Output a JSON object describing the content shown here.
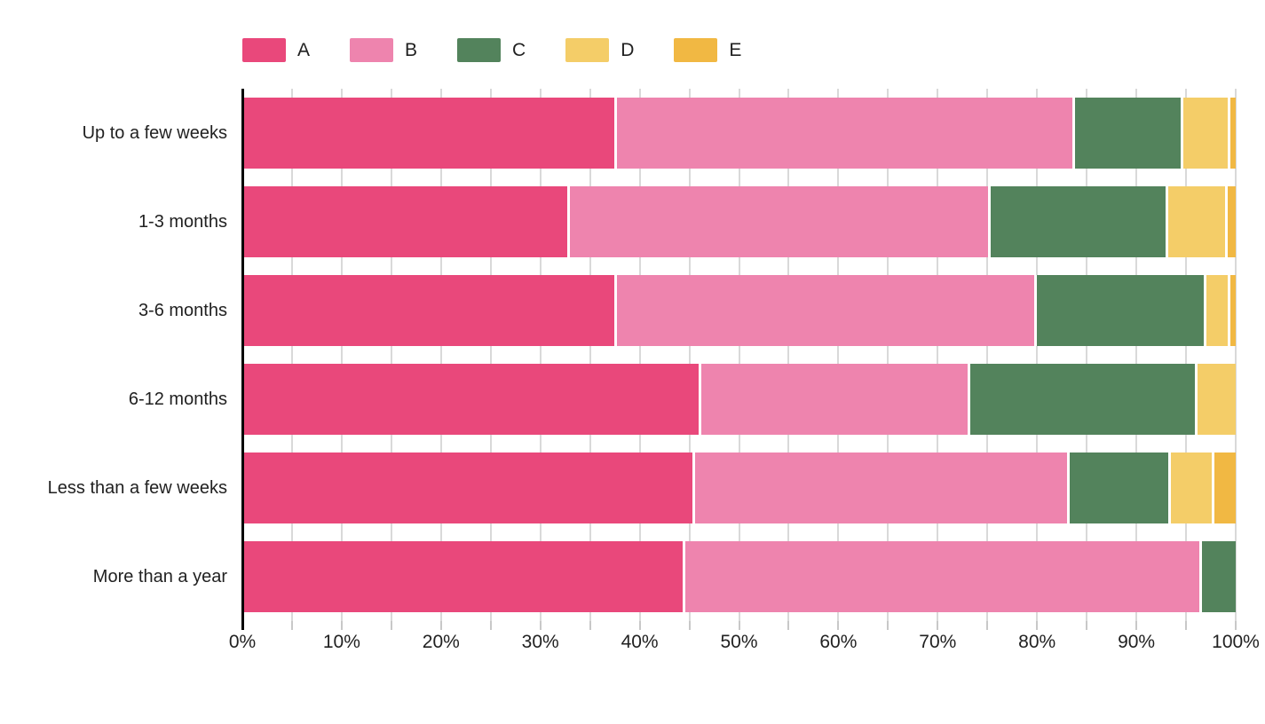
{
  "chart_data": {
    "type": "bar",
    "orientation": "horizontal",
    "stacked": true,
    "unit": "%",
    "title": "",
    "xlabel": "",
    "ylabel": "",
    "categories": [
      "Up to a few weeks",
      "1-3 months",
      "3-6 months",
      "6-12 months",
      "Less than a few weeks",
      "More than a year"
    ],
    "series": [
      {
        "name": "A",
        "color": "#e9487b",
        "values": [
          37.4,
          32.7,
          37.4,
          45.9,
          45.3,
          44.3
        ]
      },
      {
        "name": "B",
        "color": "#ee84ae",
        "values": [
          46.2,
          42.4,
          42.3,
          27.1,
          37.7,
          52.0
        ]
      },
      {
        "name": "C",
        "color": "#53835c",
        "values": [
          10.9,
          17.8,
          17.1,
          22.9,
          10.2,
          3.7
        ]
      },
      {
        "name": "D",
        "color": "#f4cd68",
        "values": [
          4.7,
          6.0,
          2.4,
          4.1,
          4.4,
          0.0
        ]
      },
      {
        "name": "E",
        "color": "#f1b843",
        "values": [
          0.8,
          1.1,
          0.8,
          0.0,
          2.4,
          0.0
        ]
      }
    ],
    "x_axis": {
      "min": 0,
      "max": 100,
      "tick_step": 10,
      "minor_tick_step": 5,
      "tick_labels": [
        "0%",
        "10%",
        "20%",
        "30%",
        "40%",
        "50%",
        "60%",
        "70%",
        "80%",
        "90%",
        "100%"
      ]
    },
    "legend": {
      "position": "top",
      "entries": [
        "A",
        "B",
        "C",
        "D",
        "E"
      ]
    },
    "grid": {
      "show": true,
      "color": "#d9d9d9"
    }
  },
  "colors": {
    "background": "#ffffff",
    "axis_line": "#000000",
    "tick": "#c8c8c8",
    "text": "#212121",
    "segment_separator": "#ffffff"
  }
}
